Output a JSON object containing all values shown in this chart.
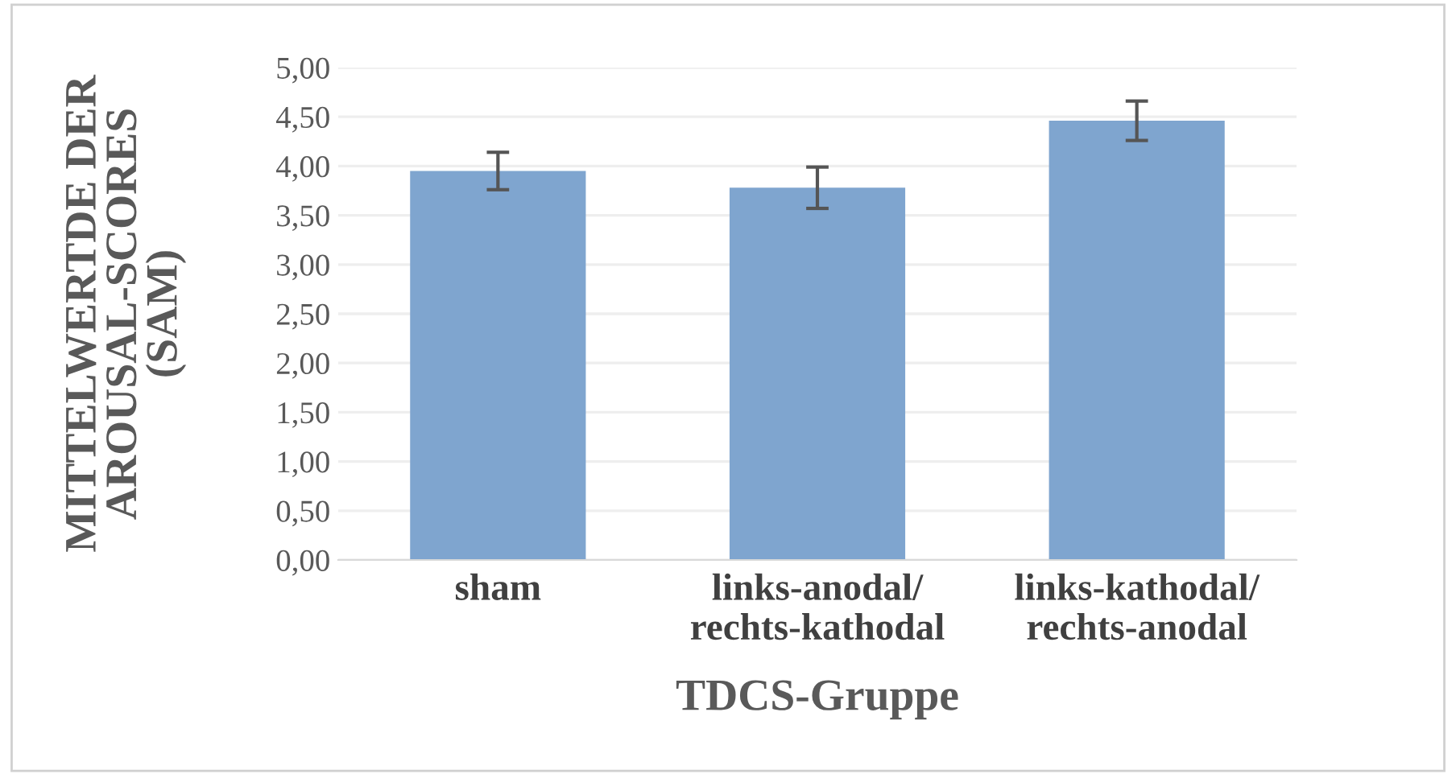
{
  "chart_data": {
    "type": "bar",
    "xlabel": "TDCS-Gruppe",
    "ylabel": "MITTELWERTDE DER\nAROUSAL-SCORES\n(SAM)",
    "categories": [
      "sham",
      "links-anodal/\nrechts-kathodal",
      "links-kathodal/\nrechts-anodal"
    ],
    "values": [
      3.95,
      3.78,
      4.46
    ],
    "errors": [
      0.19,
      0.21,
      0.2
    ],
    "color": "#7fa5cf",
    "ylim": [
      0,
      5
    ],
    "yticks": [
      {
        "value": 0,
        "label": "0,00"
      },
      {
        "value": 0.5,
        "label": "0,50"
      },
      {
        "value": 1,
        "label": "1,00"
      },
      {
        "value": 1.5,
        "label": "1,50"
      },
      {
        "value": 2,
        "label": "2,00"
      },
      {
        "value": 2.5,
        "label": "2,50"
      },
      {
        "value": 3,
        "label": "3,00"
      },
      {
        "value": 3.5,
        "label": "3,50"
      },
      {
        "value": 4,
        "label": "4,00"
      },
      {
        "value": 4.5,
        "label": "4,50"
      },
      {
        "value": 5,
        "label": "5,00"
      }
    ],
    "grid": "y",
    "legend": false
  }
}
